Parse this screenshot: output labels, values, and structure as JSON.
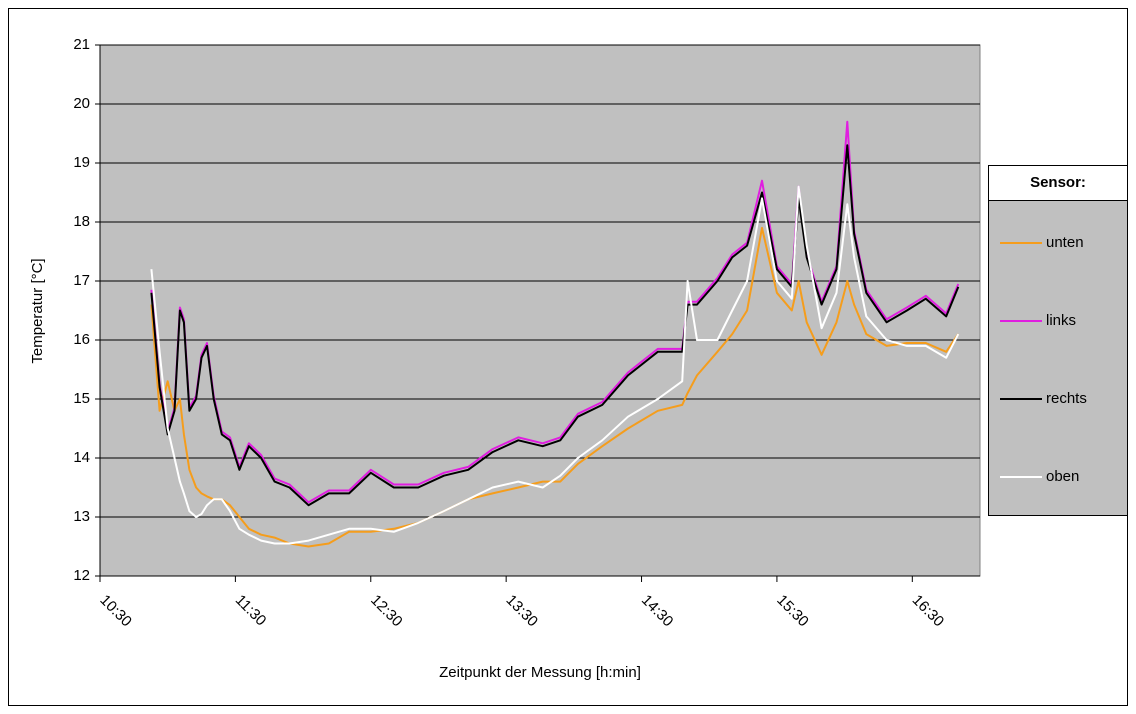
{
  "chart_data": {
    "type": "line",
    "x_label": "Zeitpunkt der Messung [h:min]",
    "y_label": "Temperatur [°C]",
    "legend_title": "Sensor:",
    "legend": "right",
    "grid": true,
    "xlim": [
      10.5,
      17.0
    ],
    "xticks": [
      {
        "value": 10.5,
        "label": "10:30"
      },
      {
        "value": 11.5,
        "label": "11:30"
      },
      {
        "value": 12.5,
        "label": "12:30"
      },
      {
        "value": 13.5,
        "label": "13:30"
      },
      {
        "value": 14.5,
        "label": "14:30"
      },
      {
        "value": 15.5,
        "label": "15:30"
      },
      {
        "value": 16.5,
        "label": "16:30"
      }
    ],
    "ylim": [
      12,
      21
    ],
    "yticks": [
      12,
      13,
      14,
      15,
      16,
      17,
      18,
      19,
      20,
      21
    ],
    "x": [
      10.88,
      10.94,
      11.0,
      11.05,
      11.09,
      11.12,
      11.16,
      11.21,
      11.25,
      11.29,
      11.34,
      11.4,
      11.46,
      11.53,
      11.6,
      11.69,
      11.79,
      11.9,
      12.04,
      12.19,
      12.34,
      12.5,
      12.67,
      12.85,
      13.04,
      13.22,
      13.4,
      13.59,
      13.77,
      13.9,
      14.03,
      14.21,
      14.4,
      14.62,
      14.8,
      14.84,
      14.91,
      15.06,
      15.17,
      15.28,
      15.39,
      15.5,
      15.61,
      15.66,
      15.72,
      15.83,
      15.94,
      16.02,
      16.07,
      16.16,
      16.31,
      16.46,
      16.6,
      16.75,
      16.84
    ],
    "series": [
      {
        "name": "unten",
        "color": "#f59d1c",
        "values": [
          16.6,
          14.8,
          15.3,
          14.8,
          15.0,
          14.4,
          13.8,
          13.5,
          13.4,
          13.35,
          13.3,
          13.3,
          13.2,
          13.0,
          12.8,
          12.7,
          12.65,
          12.55,
          12.5,
          12.55,
          12.75,
          12.75,
          12.8,
          12.9,
          13.1,
          13.3,
          13.4,
          13.5,
          13.6,
          13.6,
          13.9,
          14.2,
          14.5,
          14.8,
          14.9,
          15.1,
          15.4,
          15.8,
          16.1,
          16.5,
          17.9,
          16.8,
          16.5,
          17.0,
          16.3,
          15.75,
          16.3,
          17.0,
          16.6,
          16.1,
          15.9,
          15.95,
          15.95,
          15.8,
          16.1
        ]
      },
      {
        "name": "links",
        "color": "#e01ee0",
        "values": [
          16.85,
          15.25,
          14.45,
          14.85,
          16.55,
          16.35,
          14.85,
          15.05,
          15.75,
          15.95,
          15.05,
          14.45,
          14.35,
          13.85,
          14.25,
          14.05,
          13.65,
          13.55,
          13.25,
          13.45,
          13.45,
          13.8,
          13.55,
          13.55,
          13.75,
          13.85,
          14.15,
          14.35,
          14.25,
          14.35,
          14.75,
          14.95,
          15.45,
          15.85,
          15.85,
          16.65,
          16.65,
          17.05,
          17.45,
          17.65,
          18.7,
          17.25,
          16.95,
          18.6,
          17.45,
          16.65,
          17.25,
          19.7,
          17.85,
          16.85,
          16.35,
          16.55,
          16.75,
          16.45,
          16.95
        ]
      },
      {
        "name": "rechts",
        "color": "#000000",
        "values": [
          16.8,
          15.2,
          14.4,
          14.8,
          16.5,
          16.3,
          14.8,
          15.0,
          15.7,
          15.9,
          15.0,
          14.4,
          14.3,
          13.8,
          14.2,
          14.0,
          13.6,
          13.5,
          13.2,
          13.4,
          13.4,
          13.75,
          13.5,
          13.5,
          13.7,
          13.8,
          14.1,
          14.3,
          14.2,
          14.3,
          14.7,
          14.9,
          15.4,
          15.8,
          15.8,
          16.6,
          16.6,
          17.0,
          17.4,
          17.6,
          18.5,
          17.2,
          16.9,
          18.4,
          17.4,
          16.6,
          17.2,
          19.3,
          17.8,
          16.8,
          16.3,
          16.5,
          16.7,
          16.4,
          16.9
        ]
      },
      {
        "name": "oben",
        "color": "#ffffff",
        "values": [
          17.2,
          15.8,
          14.5,
          14.0,
          13.6,
          13.4,
          13.1,
          13.0,
          13.05,
          13.2,
          13.3,
          13.3,
          13.1,
          12.8,
          12.7,
          12.6,
          12.55,
          12.55,
          12.6,
          12.7,
          12.8,
          12.8,
          12.75,
          12.9,
          13.1,
          13.3,
          13.5,
          13.6,
          13.5,
          13.7,
          14.0,
          14.3,
          14.7,
          15.0,
          15.3,
          17.0,
          16.0,
          16.0,
          16.5,
          17.0,
          18.4,
          17.0,
          16.7,
          18.6,
          17.6,
          16.2,
          16.8,
          18.3,
          17.4,
          16.4,
          16.0,
          15.9,
          15.9,
          15.7,
          16.1
        ]
      }
    ]
  }
}
